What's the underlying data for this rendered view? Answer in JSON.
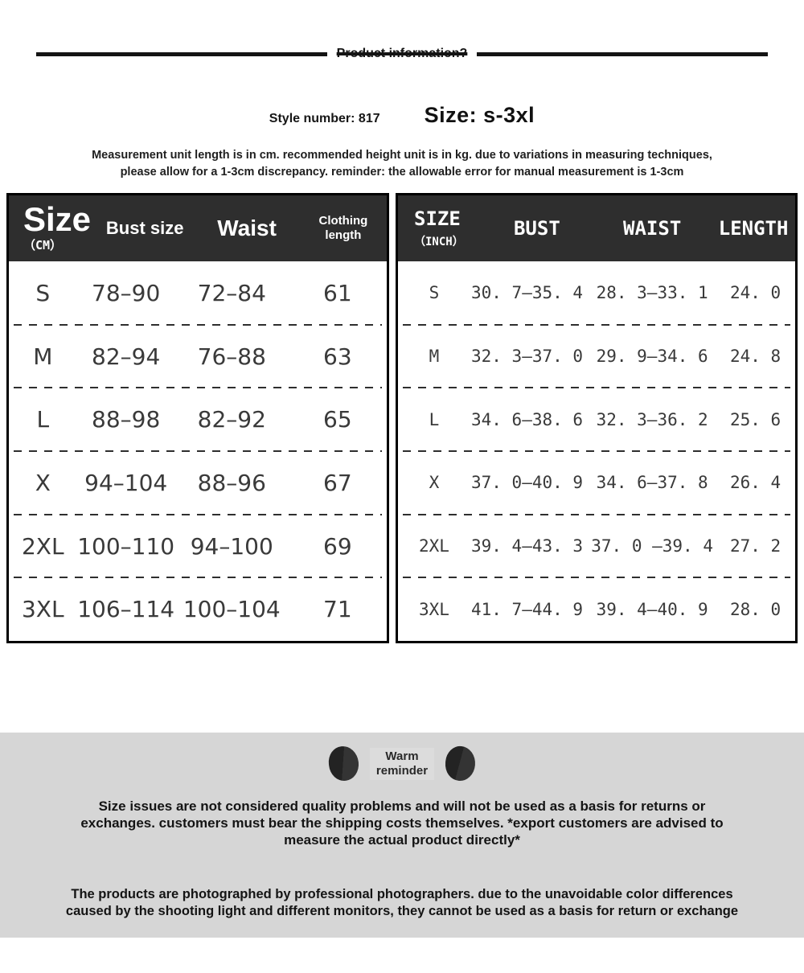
{
  "header": {
    "title": "Product information?"
  },
  "product": {
    "style_number": "Style number: 817",
    "size_range": "Size: s-3xl"
  },
  "note": {
    "line1": "Measurement unit length is in cm. recommended height unit is in kg. due to variations in measuring techniques,",
    "line2": "please allow for a 1-3cm discrepancy. reminder: the allowable error for manual measurement is 1-3cm"
  },
  "cm_table": {
    "header": {
      "size": "Size",
      "unit": "（CM）",
      "bust": "Bust size",
      "waist": "Waist",
      "length_line1": "Clothing",
      "length_line2": "length"
    },
    "rows": [
      {
        "size": "S",
        "bust": "78–90",
        "waist": "72–84",
        "length": "61"
      },
      {
        "size": "M",
        "bust": "82–94",
        "waist": "76–88",
        "length": "63"
      },
      {
        "size": "L",
        "bust": "88–98",
        "waist": "82–92",
        "length": "65"
      },
      {
        "size": "X",
        "bust": "94–104",
        "waist": "88–96",
        "length": "67"
      },
      {
        "size": "2XL",
        "bust": "100–110",
        "waist": "94–100",
        "length": "69"
      },
      {
        "size": "3XL",
        "bust": "106–114",
        "waist": "100–104",
        "length": "71"
      }
    ]
  },
  "inch_table": {
    "header": {
      "size": "SIZE",
      "unit": "（INCH）",
      "bust": "BUST",
      "waist": "WAIST",
      "length": "LENGTH"
    },
    "rows": [
      {
        "size": "S",
        "bust": "30. 7–35. 4",
        "waist": "28. 3–33. 1",
        "length": "24. 0"
      },
      {
        "size": "M",
        "bust": "32. 3–37. 0",
        "waist": "29. 9–34. 6",
        "length": "24. 8"
      },
      {
        "size": "L",
        "bust": "34. 6–38. 6",
        "waist": "32. 3–36. 2",
        "length": "25. 6"
      },
      {
        "size": "X",
        "bust": "37. 0–40. 9",
        "waist": "34. 6–37. 8",
        "length": "26. 4"
      },
      {
        "size": "2XL",
        "bust": "39. 4–43. 3",
        "waist": "37. 0 –39. 4",
        "length": "27. 2"
      },
      {
        "size": "3XL",
        "bust": "41. 7–44. 9",
        "waist": "39. 4–40. 9",
        "length": "28. 0"
      }
    ]
  },
  "footer": {
    "warm_line1": "Warm",
    "warm_line2": "reminder",
    "returns_line1": "Size issues are not considered quality problems and will not be used as a basis for returns or",
    "returns_line2": "exchanges. customers must bear the shipping costs themselves. *export customers are advised to",
    "returns_line3": "measure the actual product directly*",
    "photo_line1": "The products are photographed by professional photographers. due to the unavoidable color differences",
    "photo_line2": "caused by the shooting light and different monitors, they cannot be used as a basis for return or exchange"
  },
  "colors": {
    "table_header_bg": "#2e2e2e",
    "table_border": "#000000",
    "body_text": "#3a3a3a",
    "footer_bg": "#d6d6d6",
    "accent_dark": "#141414"
  }
}
